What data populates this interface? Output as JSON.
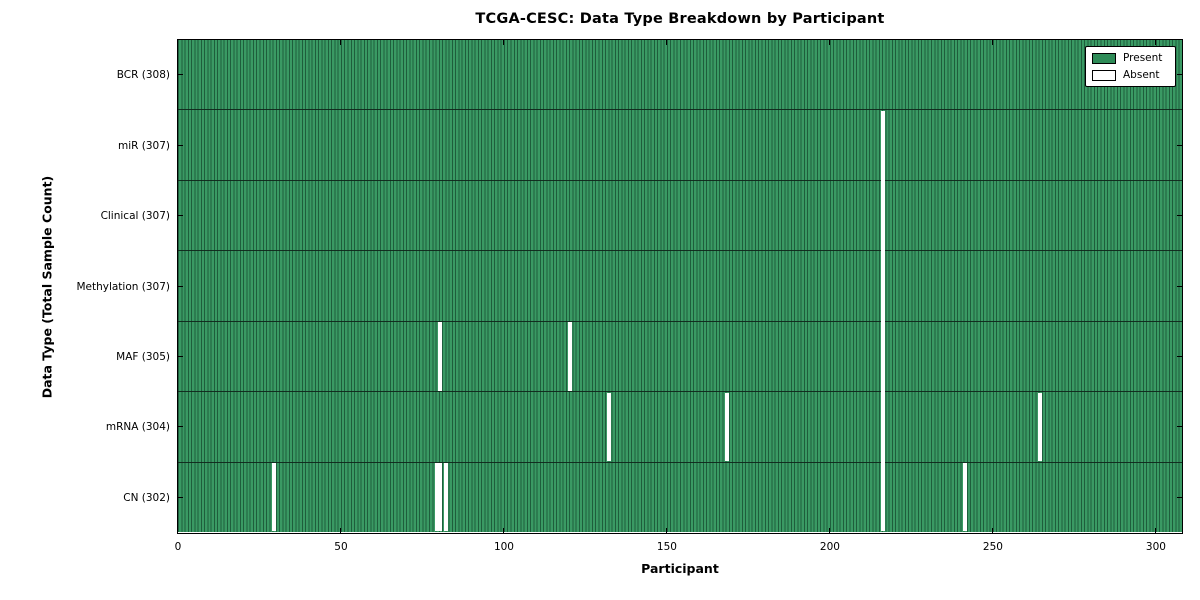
{
  "title": "TCGA-CESC: Data Type Breakdown by Participant",
  "chart_data": {
    "type": "heatmap",
    "title": "TCGA-CESC: Data Type Breakdown by Participant",
    "xlabel": "Participant",
    "ylabel": "Data Type (Total Sample Count)",
    "x_ticks": [
      0,
      50,
      100,
      150,
      200,
      250,
      300
    ],
    "x_range": [
      0,
      308
    ],
    "n_participants": 308,
    "grid": false,
    "legend_position": "upper right",
    "legend": [
      {
        "label": "Present",
        "color": "#2E8B57"
      },
      {
        "label": "Absent",
        "color": "#FFFFFF"
      }
    ],
    "rows": [
      {
        "name": "bcr",
        "label": "BCR (308)",
        "total": 308,
        "absent": []
      },
      {
        "name": "mir",
        "label": "miR (307)",
        "total": 307,
        "absent": [
          216
        ]
      },
      {
        "name": "clinical",
        "label": "Clinical (307)",
        "total": 307,
        "absent": [
          216
        ]
      },
      {
        "name": "methylation",
        "label": "Methylation (307)",
        "total": 307,
        "absent": [
          216
        ]
      },
      {
        "name": "maf",
        "label": "MAF (305)",
        "total": 305,
        "absent": [
          80,
          120,
          216
        ]
      },
      {
        "name": "mrna",
        "label": "mRNA (304)",
        "total": 304,
        "absent": [
          132,
          168,
          216,
          264
        ]
      },
      {
        "name": "cn",
        "label": "CN (302)",
        "total": 302,
        "absent": [
          29,
          79,
          80,
          82,
          216,
          241
        ]
      }
    ],
    "colors": {
      "present_fill": "#2E8B57",
      "present_light": "#3A9A64",
      "present_dark": "#1E5E3C",
      "absent": "#FFFFFF",
      "axis": "#000000"
    }
  }
}
